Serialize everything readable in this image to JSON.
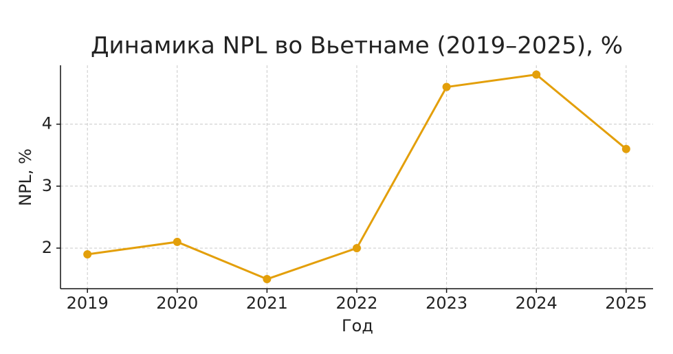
{
  "chart_data": {
    "type": "line",
    "title": "Динамика NPL во Вьетнаме (2019–2025), %",
    "x_label": "Год",
    "y_label": "NPL, %",
    "x": [
      2019,
      2020,
      2021,
      2022,
      2023,
      2024,
      2025
    ],
    "series": [
      {
        "name": "NPL",
        "color": "#e39f0a",
        "values": [
          1.9,
          2.1,
          1.5,
          2.0,
          4.6,
          4.8,
          3.6
        ]
      }
    ],
    "xlim": [
      2018.7,
      2025.3
    ],
    "ylim": [
      1.345,
      4.95
    ],
    "xticks": [
      2019,
      2020,
      2021,
      2022,
      2023,
      2024,
      2025
    ],
    "yticks": [
      2,
      3,
      4
    ],
    "grid": true
  }
}
